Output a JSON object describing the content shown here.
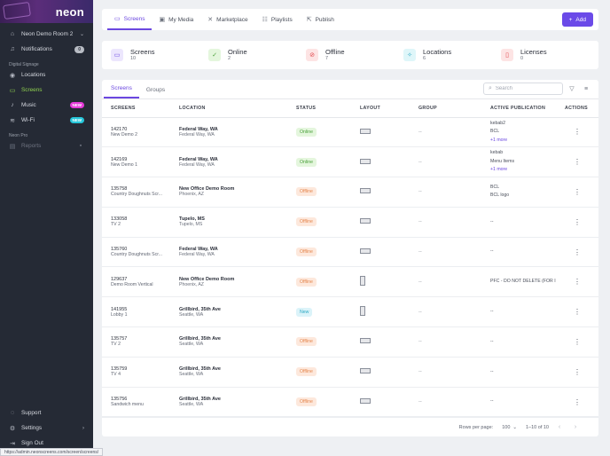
{
  "sidebar": {
    "brand": "neon",
    "org": "Neon Demo Room 2",
    "notifications_label": "Notifications",
    "notifications_count": "0",
    "section_digital": "Digital Signage",
    "items": [
      {
        "label": "Locations"
      },
      {
        "label": "Screens"
      },
      {
        "label": "Music",
        "badge": "NEW"
      },
      {
        "label": "Wi-Fi",
        "badge": "NEW"
      }
    ],
    "section_pro": "Neon Pro",
    "reports_label": "Reports",
    "support_label": "Support",
    "settings_label": "Settings",
    "signout_label": "Sign Out"
  },
  "topbar": {
    "tabs": [
      "Screens",
      "My Media",
      "Marketplace",
      "Playlists",
      "Publish"
    ],
    "add_label": "Add"
  },
  "stats": [
    {
      "label": "Screens",
      "value": "10"
    },
    {
      "label": "Online",
      "value": "2"
    },
    {
      "label": "Offline",
      "value": "7"
    },
    {
      "label": "Locations",
      "value": "6"
    },
    {
      "label": "Licenses",
      "value": "0"
    }
  ],
  "panel": {
    "tabs": [
      "Screens",
      "Groups"
    ],
    "search_placeholder": "Search",
    "columns": [
      "SCREENS",
      "LOCATION",
      "STATUS",
      "LAYOUT",
      "GROUP",
      "ACTIVE PUBLICATION",
      "ACTIONS"
    ],
    "rows": [
      {
        "id": "142170",
        "name": "New Demo 2",
        "loc": "Federal Way, WA",
        "loc_sub": "Federal Way, WA",
        "status": "Online",
        "layout": "h",
        "group": "--",
        "pub": [
          "kebab2",
          "BCL"
        ],
        "more": "+1 more"
      },
      {
        "id": "142169",
        "name": "New Demo 1",
        "loc": "Federal Way, WA",
        "loc_sub": "Federal Way, WA",
        "status": "Online",
        "layout": "h",
        "group": "--",
        "pub": [
          "kebab",
          "Menu Items"
        ],
        "more": "+1 more"
      },
      {
        "id": "135758",
        "name": "Country Doughnuts Scr...",
        "loc": "New Office Demo Room",
        "loc_sub": "Phoenix, AZ",
        "status": "Offline",
        "layout": "h",
        "group": "--",
        "pub": [
          "BCL",
          "BCL logo"
        ],
        "more": ""
      },
      {
        "id": "133058",
        "name": "TV 2",
        "loc": "Tupelo, MS",
        "loc_sub": "Tupelo, MS",
        "status": "Offline",
        "layout": "h",
        "group": "--",
        "pub": [
          "--"
        ],
        "more": ""
      },
      {
        "id": "135760",
        "name": "Country Doughnuts Scr...",
        "loc": "Federal Way, WA",
        "loc_sub": "Federal Way, WA",
        "status": "Offline",
        "layout": "h",
        "group": "--",
        "pub": [
          "--"
        ],
        "more": ""
      },
      {
        "id": "129637",
        "name": "Demo Room Vertical",
        "loc": "New Office Demo Room",
        "loc_sub": "Phoenix, AZ",
        "status": "Offline",
        "layout": "v",
        "group": "--",
        "pub": [
          "PFC - DO NOT DELETE (FOR I"
        ],
        "more": ""
      },
      {
        "id": "141955",
        "name": "Lobby 1",
        "loc": "Grillbird, 35th Ave",
        "loc_sub": "Seattle, WA",
        "status": "New",
        "layout": "v",
        "group": "--",
        "pub": [
          "--"
        ],
        "more": ""
      },
      {
        "id": "135757",
        "name": "TV 2",
        "loc": "Grillbird, 35th Ave",
        "loc_sub": "Seattle, WA",
        "status": "Offline",
        "layout": "h",
        "group": "--",
        "pub": [
          "--"
        ],
        "more": ""
      },
      {
        "id": "135759",
        "name": "TV 4",
        "loc": "Grillbird, 35th Ave",
        "loc_sub": "Seattle, WA",
        "status": "Offline",
        "layout": "h",
        "group": "--",
        "pub": [
          "--"
        ],
        "more": ""
      },
      {
        "id": "135756",
        "name": "Sandwich menu",
        "loc": "Grillbird, 35th Ave",
        "loc_sub": "Seattle, WA",
        "status": "Offline",
        "layout": "h",
        "group": "--",
        "pub": [
          "--"
        ],
        "more": ""
      }
    ],
    "rows_per_page_label": "Rows per page:",
    "rows_per_page": "100",
    "range": "1–10 of 10"
  },
  "statusbar_url": "https://admin.neonscreens.com/screen/screens/",
  "colors": {
    "accent": "#6b4ae8",
    "sidebar": "#252a35",
    "active_nav": "#8fd14f"
  }
}
